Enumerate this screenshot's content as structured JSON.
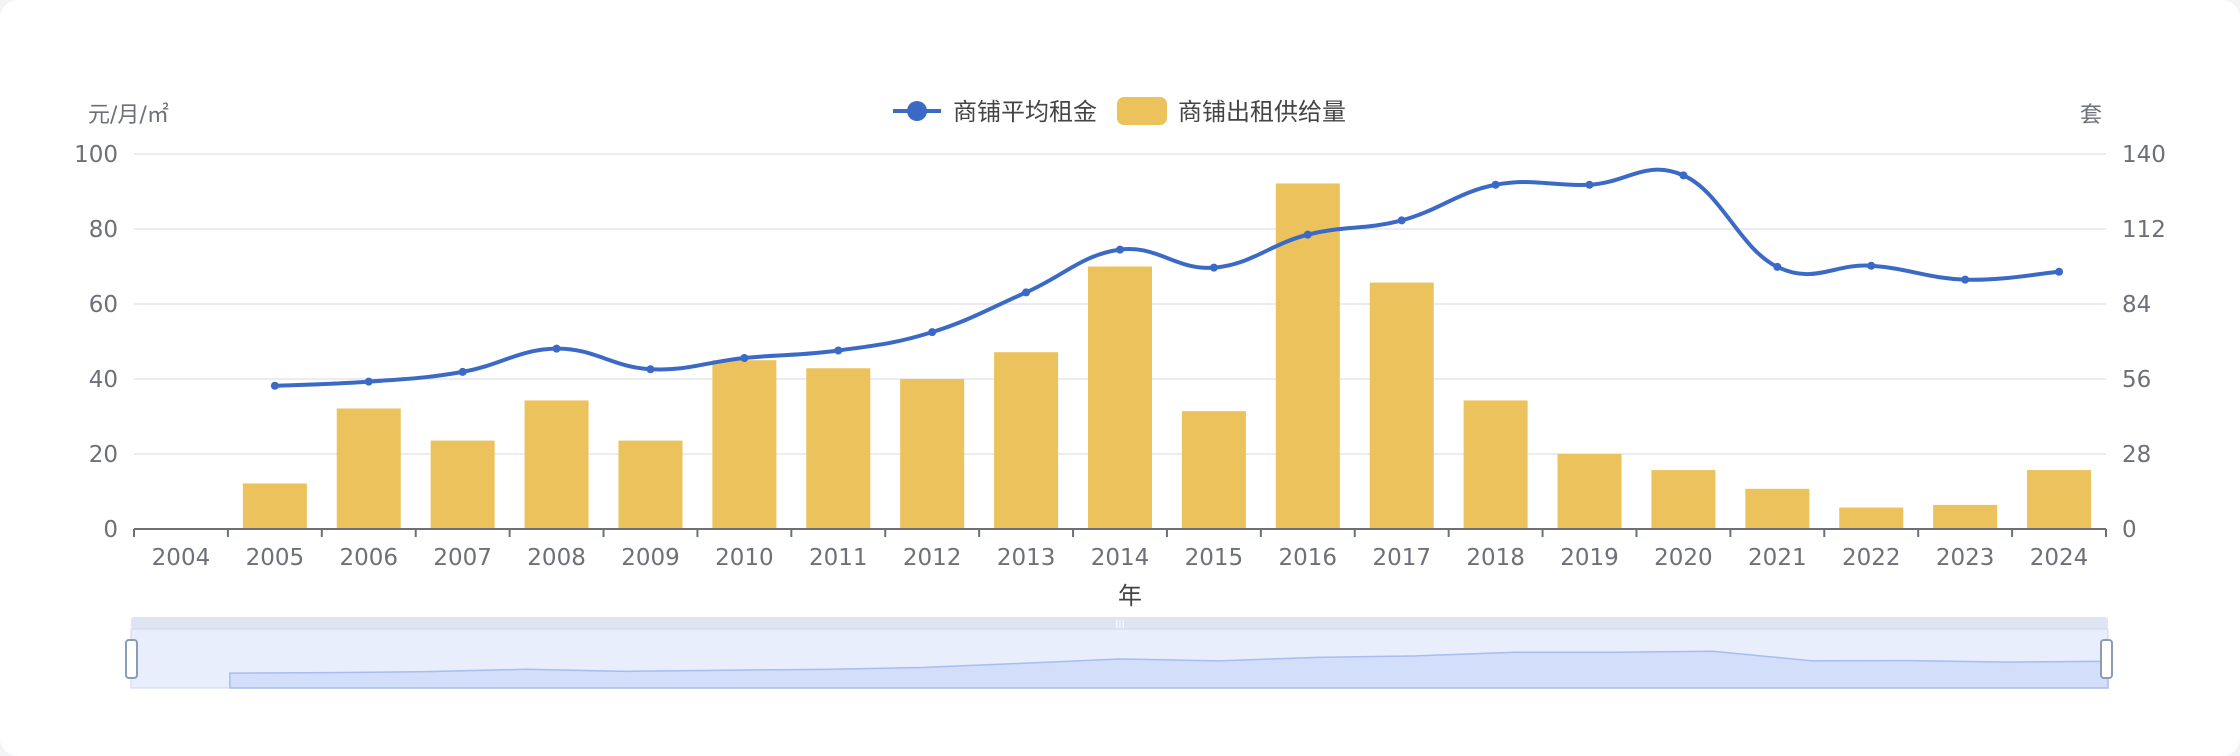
{
  "chart_data": {
    "type": "bar",
    "categories": [
      "2004",
      "2005",
      "2006",
      "2007",
      "2008",
      "2009",
      "2010",
      "2011",
      "2012",
      "2013",
      "2014",
      "2015",
      "2016",
      "2017",
      "2018",
      "2019",
      "2020",
      "2021",
      "2022",
      "2023",
      "2024"
    ],
    "series": [
      {
        "name": "商铺平均租金",
        "type": "line",
        "axis": "left",
        "color": "#3b6ac6",
        "values": [
          null,
          38.2,
          39.3,
          41.9,
          48.1,
          42.6,
          45.6,
          47.6,
          52.5,
          63.1,
          74.5,
          69.7,
          78.5,
          82.3,
          91.8,
          91.8,
          94.3,
          69.9,
          70.2,
          66.5,
          68.6
        ]
      },
      {
        "name": "商铺出租供给量",
        "type": "bar",
        "axis": "right",
        "color": "#ebc25c",
        "values": [
          0,
          17,
          45,
          33,
          48,
          33,
          63,
          60,
          56,
          66,
          98,
          44,
          129,
          92,
          48,
          28,
          22,
          15,
          8,
          9,
          22
        ]
      }
    ],
    "xlabel": "年",
    "ylabel_left": "元/月/㎡",
    "ylabel_right": "套",
    "ylim_left": [
      0,
      100
    ],
    "ylim_right": [
      0,
      140
    ],
    "yticks_left": [
      "0",
      "20",
      "40",
      "60",
      "80",
      "100"
    ],
    "yticks_right": [
      "0",
      "28",
      "56",
      "84",
      "112",
      "140"
    ],
    "legend_position": "top-center",
    "grid": true,
    "data_zoom_slider": true
  }
}
